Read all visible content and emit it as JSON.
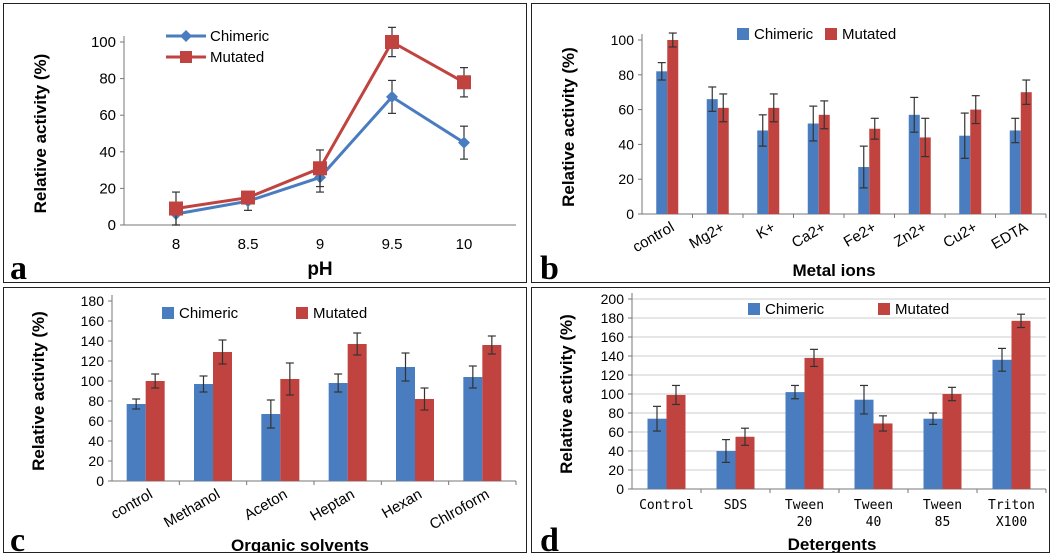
{
  "colors": {
    "chimeric": "#4a7cc0",
    "mutated": "#c0433f",
    "errorbar": "#333333",
    "axis": "#777777",
    "grid": "#bbbbbb"
  },
  "chart_data": [
    {
      "panel_letter": "a",
      "type": "line",
      "xlabel": "pH",
      "ylabel": "Relative activity (%)",
      "x": [
        8,
        8.5,
        9,
        9.5,
        10
      ],
      "x_tick_labels": [
        "8",
        "8.5",
        "9",
        "9.5",
        "10"
      ],
      "ylim": [
        0,
        100
      ],
      "y_ticks": [
        0,
        20,
        40,
        60,
        80,
        100
      ],
      "grid": false,
      "legend": "top-left",
      "series": [
        {
          "name": "Chimeric",
          "values": [
            6,
            13,
            26,
            70,
            45
          ],
          "errors": [
            6,
            5,
            8,
            9,
            9
          ]
        },
        {
          "name": "Mutated",
          "values": [
            9,
            15,
            31,
            100,
            78
          ],
          "errors": [
            9,
            3,
            10,
            8,
            8
          ]
        }
      ]
    },
    {
      "panel_letter": "b",
      "type": "bar",
      "xlabel": "Metal ions",
      "ylabel": "Relative activity (%)",
      "categories": [
        "control",
        "Mg2+",
        "K+",
        "Ca2+",
        "Fe2+",
        "Zn2+",
        "Cu2+",
        "EDTA"
      ],
      "ylim": [
        0,
        100
      ],
      "y_ticks": [
        0,
        20,
        40,
        60,
        80,
        100
      ],
      "grid": false,
      "legend": "top",
      "series": [
        {
          "name": "Chimeric",
          "values": [
            82,
            66,
            48,
            52,
            27,
            57,
            45,
            48
          ],
          "errors": [
            5,
            7,
            9,
            10,
            12,
            10,
            13,
            7
          ]
        },
        {
          "name": "Mutated",
          "values": [
            100,
            61,
            61,
            57,
            49,
            44,
            60,
            70
          ],
          "errors": [
            4,
            8,
            8,
            8,
            6,
            11,
            8,
            7
          ]
        }
      ]
    },
    {
      "panel_letter": "c",
      "type": "bar",
      "xlabel": "Organic solvents",
      "ylabel": "Relative activity (%)",
      "categories": [
        "control",
        "Methanol",
        "Aceton",
        "Heptan",
        "Hexan",
        "Chlroform"
      ],
      "ylim": [
        0,
        180
      ],
      "y_ticks": [
        0,
        20,
        40,
        60,
        80,
        100,
        120,
        140,
        160,
        180
      ],
      "grid": false,
      "legend": "top",
      "series": [
        {
          "name": "Chimeric",
          "values": [
            77,
            97,
            67,
            98,
            114,
            104
          ],
          "errors": [
            5,
            8,
            14,
            9,
            14,
            11
          ]
        },
        {
          "name": "Mutated",
          "values": [
            100,
            129,
            102,
            137,
            82,
            136
          ],
          "errors": [
            7,
            12,
            16,
            11,
            11,
            9
          ]
        }
      ]
    },
    {
      "panel_letter": "d",
      "type": "bar",
      "xlabel": "Detergents",
      "ylabel": "Relative activity (%)",
      "categories": [
        "Control",
        "SDS",
        "Tween 20",
        "Tween 40",
        "Tween 85",
        "Triton X100"
      ],
      "ylim": [
        0,
        200
      ],
      "y_ticks": [
        0,
        20,
        40,
        60,
        80,
        100,
        120,
        140,
        160,
        180,
        200
      ],
      "grid": true,
      "legend": "top",
      "series": [
        {
          "name": "Chimeric",
          "values": [
            74,
            40,
            102,
            94,
            74,
            136
          ],
          "errors": [
            13,
            12,
            7,
            15,
            6,
            12
          ]
        },
        {
          "name": "Mutated",
          "values": [
            99,
            55,
            138,
            69,
            100,
            177
          ],
          "errors": [
            10,
            9,
            9,
            8,
            7,
            7
          ]
        }
      ]
    }
  ]
}
